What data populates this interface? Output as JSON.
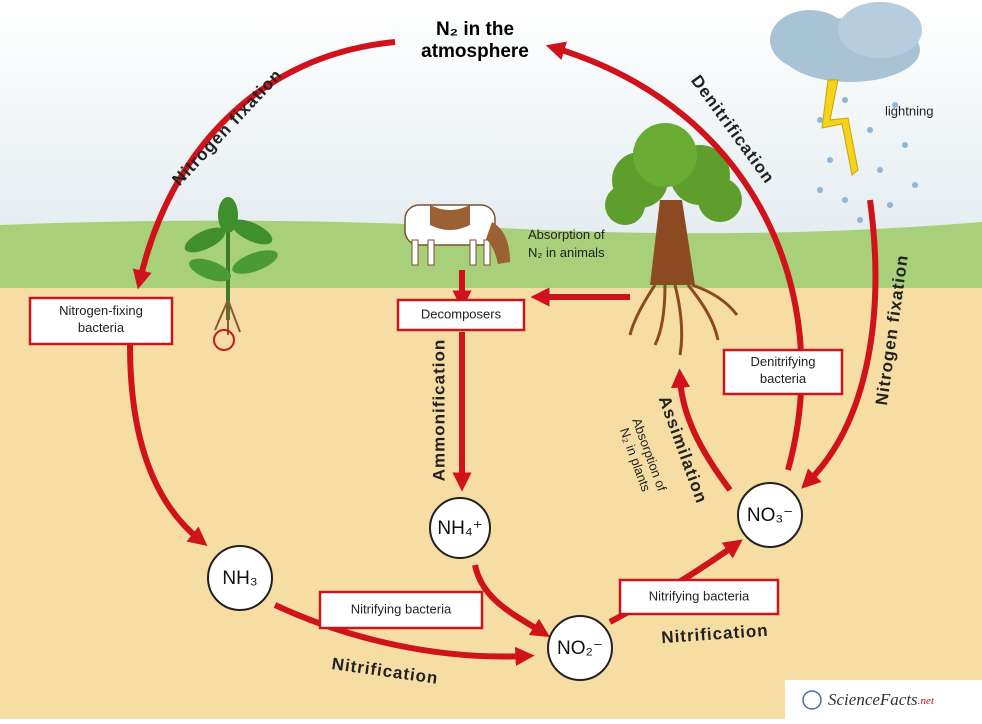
{
  "atmosphere": {
    "lines": [
      "N₂ in the",
      "atmosphere"
    ]
  },
  "processes": [
    "Nitrogen fixation",
    "Denitrification",
    "Nitrogen fixation",
    "Ammonification",
    "Assimilation",
    "Nitrification",
    "Nitrification"
  ],
  "boxes": [
    {
      "lines": [
        "Nitrogen-fixing",
        "bacteria"
      ]
    },
    {
      "lines": [
        "Decomposers"
      ]
    },
    {
      "lines": [
        "Denitrifying",
        "bacteria"
      ]
    },
    {
      "lines": [
        "Nitrifying bacteria"
      ]
    },
    {
      "lines": [
        "Nitrifying bacteria"
      ]
    }
  ],
  "compounds": [
    "NH₃",
    "NH₄⁺",
    "NO₂⁻",
    "NO₃⁻"
  ],
  "annotations": {
    "animals": [
      "Absorption of",
      "N₂ in animals"
    ],
    "plants": [
      "Absorption of",
      "N₂ in plants"
    ],
    "lightning": "lightning"
  },
  "logo": {
    "name": "ScienceFacts",
    "suffix": ".net"
  }
}
